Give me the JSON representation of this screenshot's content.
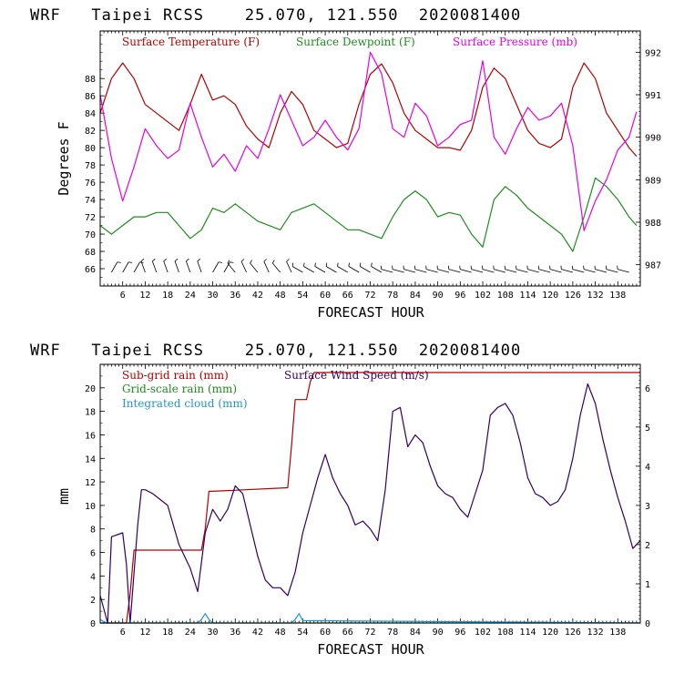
{
  "chart_data": [
    {
      "type": "line",
      "title": "WRF   Taipei RCSS    25.070, 121.550  2020081400",
      "xlabel": "FORECAST HOUR",
      "ylabel": "Degrees F",
      "xlim": [
        0,
        144
      ],
      "xticks": [
        "6",
        "12",
        "18",
        "24",
        "30",
        "36",
        "42",
        "48",
        "54",
        "60",
        "66",
        "72",
        "78",
        "84",
        "90",
        "96",
        "102",
        "108",
        "114",
        "120",
        "126",
        "132",
        "138"
      ],
      "ylim": [
        64,
        93.5
      ],
      "yticks": [
        "66",
        "68",
        "70",
        "72",
        "74",
        "76",
        "78",
        "80",
        "82",
        "84",
        "86",
        "88"
      ],
      "y2lim": [
        986.5,
        992.5
      ],
      "y2ticks": [
        "987",
        "988",
        "989",
        "990",
        "991",
        "992"
      ],
      "colors": {
        "temperature": "#b40000",
        "dewpoint": "#1e8c1e",
        "pressure": "#e600e6"
      },
      "series": [
        {
          "name": "Surface Temperature (F)",
          "axis": "left",
          "x": [
            0,
            3,
            6,
            9,
            12,
            15,
            18,
            21,
            24,
            27,
            30,
            33,
            36,
            39,
            42,
            45,
            48,
            51,
            54,
            57,
            60,
            63,
            66,
            69,
            72,
            75,
            78,
            81,
            84,
            87,
            90,
            93,
            96,
            99,
            102,
            105,
            108,
            111,
            114,
            117,
            120,
            123,
            126,
            129,
            132,
            135,
            138,
            141,
            143
          ],
          "values": [
            84,
            88,
            89.8,
            88,
            85,
            84,
            83,
            82,
            85,
            88.5,
            85.5,
            86,
            85,
            82.5,
            81,
            80,
            84,
            86.5,
            85,
            82,
            81,
            80,
            80.5,
            85,
            88.5,
            89.7,
            87.5,
            84,
            82,
            81,
            80,
            80,
            79.7,
            82,
            87,
            89.2,
            88,
            85,
            82,
            80.5,
            80,
            81,
            87,
            89.8,
            88,
            84,
            82,
            80,
            79
          ]
        },
        {
          "name": "Surface Dewpoint (F)",
          "axis": "left",
          "x": [
            0,
            3,
            6,
            9,
            12,
            15,
            18,
            21,
            24,
            27,
            30,
            33,
            36,
            39,
            42,
            45,
            48,
            51,
            54,
            57,
            60,
            63,
            66,
            69,
            72,
            75,
            78,
            81,
            84,
            87,
            90,
            93,
            96,
            99,
            102,
            105,
            108,
            111,
            114,
            117,
            120,
            123,
            126,
            129,
            132,
            135,
            138,
            141,
            143
          ],
          "values": [
            71,
            70,
            71,
            72,
            72,
            72.5,
            72.5,
            71,
            69.5,
            70.5,
            73,
            72.5,
            73.5,
            72.5,
            71.5,
            71,
            70.5,
            72.5,
            73,
            73.5,
            72.5,
            71.5,
            70.5,
            70.5,
            70,
            69.5,
            72,
            74,
            75,
            74,
            72,
            72.5,
            72.2,
            70,
            68.5,
            74,
            75.5,
            74.5,
            73,
            72,
            71,
            70,
            68,
            72,
            76.5,
            75.5,
            74,
            72,
            71
          ]
        },
        {
          "name": "Surface Pressure (mb)",
          "axis": "right",
          "x": [
            0,
            3,
            6,
            9,
            12,
            15,
            18,
            21,
            24,
            27,
            30,
            33,
            36,
            39,
            42,
            45,
            48,
            51,
            54,
            57,
            60,
            63,
            66,
            69,
            72,
            75,
            78,
            81,
            84,
            87,
            90,
            93,
            96,
            99,
            102,
            105,
            108,
            111,
            114,
            117,
            120,
            123,
            126,
            129,
            132,
            135,
            138,
            141,
            143
          ],
          "values": [
            991,
            989.5,
            988.5,
            989.3,
            990.2,
            989.8,
            989.5,
            989.7,
            990.8,
            990,
            989.3,
            989.6,
            989.2,
            989.8,
            989.5,
            990.2,
            991,
            990.4,
            989.8,
            990,
            990.4,
            990,
            989.7,
            990.2,
            992,
            991.5,
            990.2,
            990,
            990.8,
            990.5,
            989.8,
            990,
            990.3,
            990.4,
            991.8,
            990,
            989.6,
            990.2,
            990.7,
            990.4,
            990.5,
            990.8,
            989.8,
            987.8,
            988.5,
            989,
            989.7,
            990,
            990.6
          ]
        }
      ],
      "wind_barbs": "surface wind barbs along lower edge"
    },
    {
      "type": "line",
      "title": "WRF   Taipei RCSS    25.070, 121.550  2020081400",
      "xlabel": "FORECAST HOUR",
      "ylabel": "mm",
      "xlim": [
        0,
        144
      ],
      "xticks": [
        "6",
        "12",
        "18",
        "24",
        "30",
        "36",
        "42",
        "48",
        "54",
        "60",
        "66",
        "72",
        "78",
        "84",
        "90",
        "96",
        "102",
        "108",
        "114",
        "120",
        "126",
        "132",
        "138"
      ],
      "ylim": [
        0,
        22
      ],
      "yticks": [
        "0",
        "2",
        "4",
        "6",
        "8",
        "10",
        "12",
        "14",
        "16",
        "18",
        "20"
      ],
      "y2lim": [
        0,
        6.6
      ],
      "y2ticks": [
        "0",
        "1",
        "2",
        "3",
        "4",
        "5",
        "6"
      ],
      "colors": {
        "subgrid": "#b40000",
        "gridscale": "#1e8c1e",
        "cloud": "#1e96d2",
        "wind": "#320064"
      },
      "series": [
        {
          "name": "Sub-grid rain (mm)",
          "axis": "left",
          "x": [
            0,
            7,
            8,
            9,
            27,
            28,
            29,
            30,
            50,
            51,
            52,
            55,
            56,
            57,
            144
          ],
          "values": [
            0,
            0,
            2.5,
            6.2,
            6.2,
            8,
            11.2,
            11.2,
            11.5,
            15,
            19,
            19,
            20.5,
            21.3,
            21.3
          ]
        },
        {
          "name": "Grid-scale rain (mm)",
          "axis": "left",
          "x": [
            0,
            144
          ],
          "values": [
            0,
            0
          ]
        },
        {
          "name": "Integrated cloud (mm)",
          "axis": "left",
          "x": [
            0,
            1,
            2,
            3,
            26,
            27,
            28,
            29,
            30,
            51,
            52,
            53,
            54,
            144
          ],
          "values": [
            0.3,
            0.1,
            0,
            0,
            0,
            0.3,
            0.8,
            0.3,
            0,
            0,
            0.3,
            0.8,
            0.2,
            0
          ]
        },
        {
          "name": "Surface Wind Speed (m/s)",
          "axis": "right",
          "x": [
            0,
            2,
            3,
            6,
            7,
            8,
            10,
            11,
            12,
            14,
            18,
            21,
            24,
            26,
            28,
            30,
            32,
            34,
            36,
            38,
            40,
            42,
            44,
            46,
            48,
            50,
            52,
            54,
            56,
            58,
            60,
            62,
            64,
            66,
            68,
            70,
            72,
            74,
            76,
            78,
            80,
            82,
            84,
            86,
            88,
            90,
            92,
            94,
            96,
            98,
            100,
            102,
            104,
            106,
            108,
            110,
            112,
            114,
            116,
            118,
            120,
            122,
            124,
            126,
            128,
            130,
            132,
            134,
            136,
            138,
            140,
            142,
            144
          ],
          "values": [
            0.7,
            0,
            2.2,
            2.3,
            1.5,
            0,
            2.5,
            3.4,
            3.4,
            3.3,
            3,
            2,
            1.4,
            0.8,
            2.3,
            2.9,
            2.6,
            2.9,
            3.5,
            3.3,
            2.5,
            1.7,
            1.1,
            0.9,
            0.9,
            0.7,
            1.3,
            2.3,
            3,
            3.7,
            4.3,
            3.7,
            3.3,
            3,
            2.5,
            2.6,
            2.4,
            2.1,
            3.4,
            5.4,
            5.5,
            4.5,
            4.8,
            4.6,
            4,
            3.5,
            3.3,
            3.2,
            2.9,
            2.7,
            3.3,
            3.9,
            5.3,
            5.5,
            5.6,
            5.3,
            4.6,
            3.7,
            3.3,
            3.2,
            3,
            3.1,
            3.4,
            4.2,
            5.3,
            6.1,
            5.6,
            4.7,
            3.9,
            3.2,
            2.6,
            1.9,
            2.1
          ]
        }
      ]
    }
  ],
  "legend": {
    "temperature": "Surface Temperature (F)",
    "dewpoint": "Surface Dewpoint (F)",
    "pressure": "Surface Pressure (mb)",
    "subgrid": "Sub-grid rain (mm)",
    "wind": "Surface Wind Speed (m/s)",
    "gridscale": "Grid-scale rain (mm)",
    "cloud": "Integrated cloud (mm)"
  },
  "barb_color": "#000000"
}
